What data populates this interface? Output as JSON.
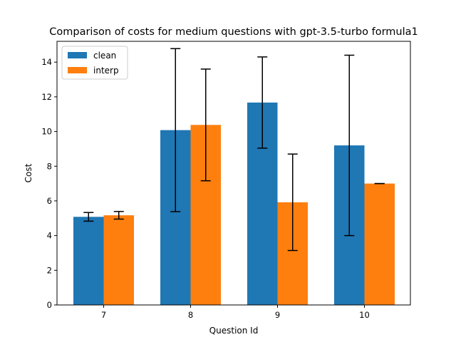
{
  "chart_data": {
    "type": "bar",
    "title": "Comparison of costs for medium questions with gpt-3.5-turbo formula1",
    "xlabel": "Question Id",
    "ylabel": "Cost",
    "categories": [
      "7",
      "8",
      "9",
      "10"
    ],
    "ylim": [
      0,
      15.2
    ],
    "yticks": [
      0,
      2,
      4,
      6,
      8,
      10,
      12,
      14
    ],
    "grid": false,
    "legend_position": "top-left",
    "series": [
      {
        "name": "clean",
        "color": "#1f77b4",
        "values": [
          5.08,
          10.08,
          11.67,
          9.2
        ],
        "errors": [
          0.25,
          4.7,
          2.63,
          5.2
        ]
      },
      {
        "name": "interp",
        "color": "#ff7f0e",
        "values": [
          5.17,
          10.38,
          5.92,
          7.0
        ],
        "errors": [
          0.22,
          3.22,
          2.78,
          0.0
        ]
      }
    ]
  }
}
